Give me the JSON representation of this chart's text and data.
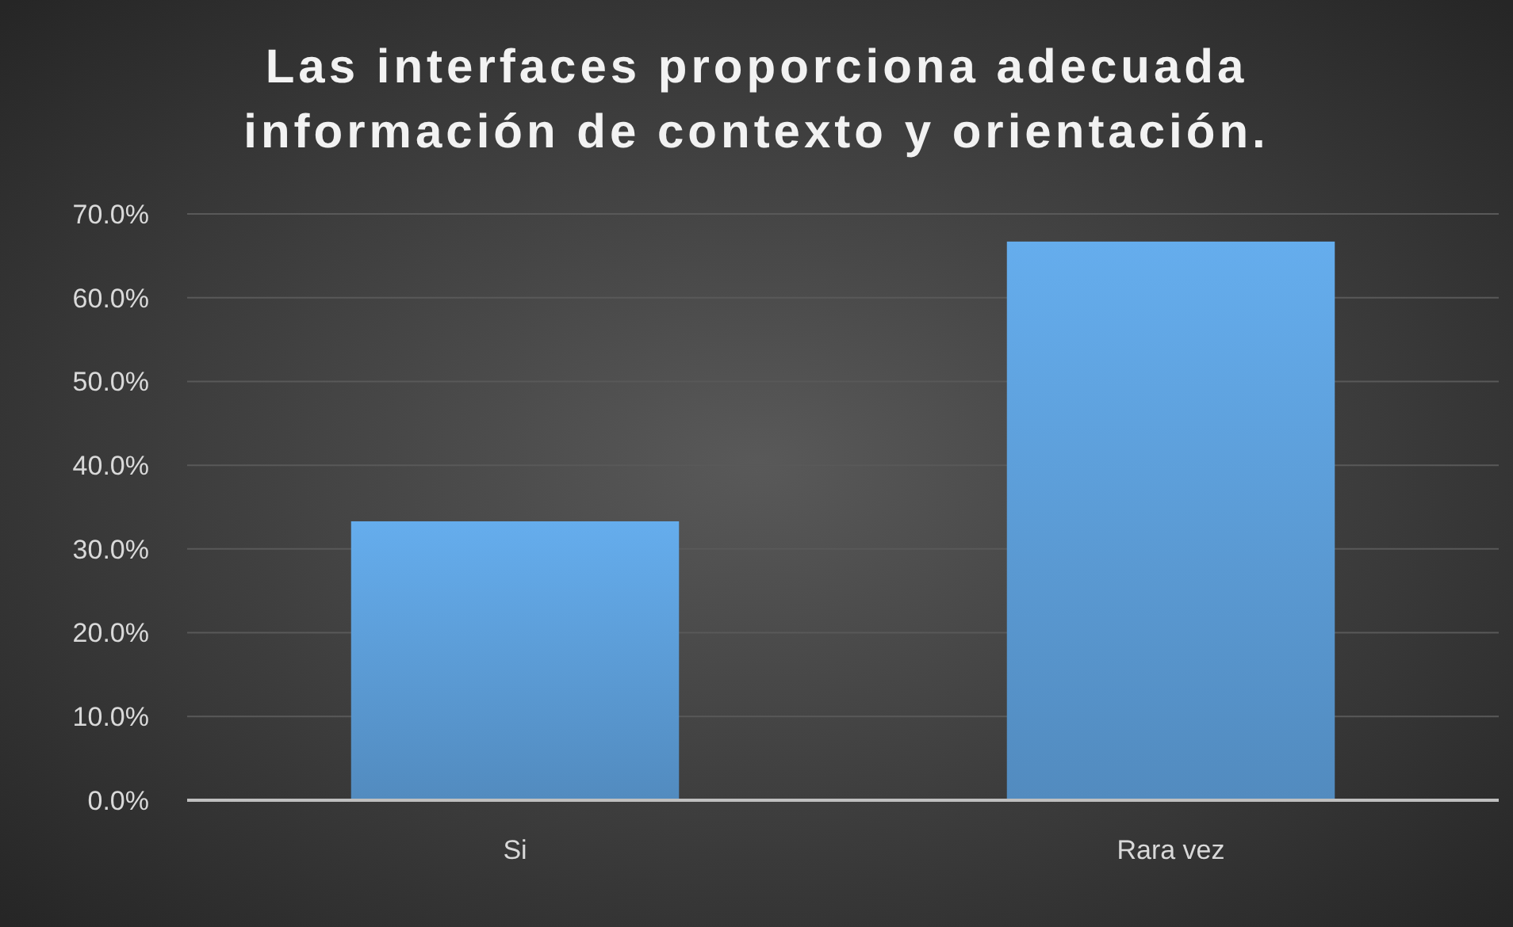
{
  "chart_data": {
    "type": "bar",
    "title": "Las interfaces proporciona adecuada información de contexto y orientación.",
    "categories": [
      "Si",
      "Rara vez"
    ],
    "values": [
      33.3,
      66.7
    ],
    "color": "#5b9bd5",
    "ylim": [
      0,
      70
    ],
    "yticks": [
      {
        "value": 0,
        "label": "0.0%"
      },
      {
        "value": 10,
        "label": "10.0%"
      },
      {
        "value": 20,
        "label": "20.0%"
      },
      {
        "value": 30,
        "label": "30.0%"
      },
      {
        "value": 40,
        "label": "40.0%"
      },
      {
        "value": 50,
        "label": "50.0%"
      },
      {
        "value": 60,
        "label": "60.0%"
      },
      {
        "value": 70,
        "label": "70.0%"
      }
    ],
    "grid": "y"
  }
}
